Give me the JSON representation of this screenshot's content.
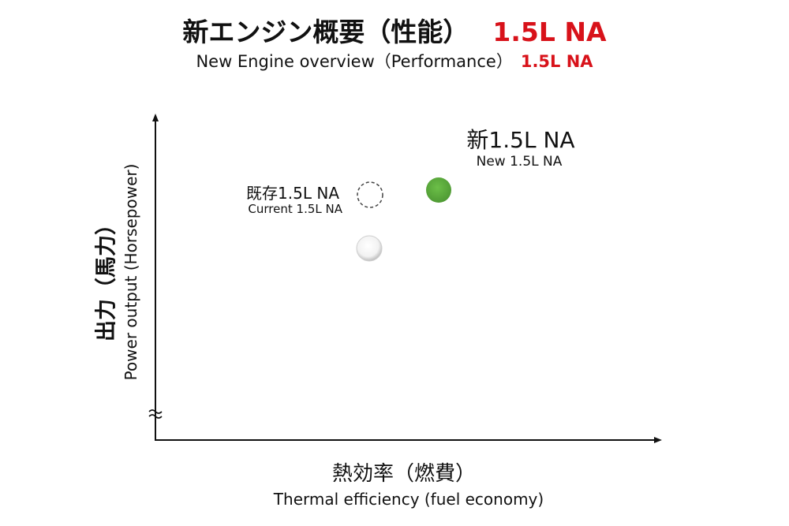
{
  "title": {
    "main": "新エンジン概要（性能）",
    "highlight": "1.5L NA"
  },
  "subtitle": {
    "main": "New Engine overview（Performance）",
    "highlight": "1.5L NA"
  },
  "y_axis": {
    "label_ja": "出力（馬力）",
    "label_en": "Power output (Horsepower)",
    "break_mark": "≈"
  },
  "x_axis": {
    "label_ja": "熱効率（燃費）",
    "label_en": "Thermal efficiency (fuel economy)"
  },
  "points": {
    "new": {
      "label_ja": "新1.5L NA",
      "label_en": "New 1.5L NA",
      "color": "#5aaa3c"
    },
    "current": {
      "label_ja": "既存1.5L NA",
      "label_en": "Current 1.5L NA",
      "style": "dashed-outline"
    },
    "reference": {
      "style": "white-sphere"
    }
  }
}
